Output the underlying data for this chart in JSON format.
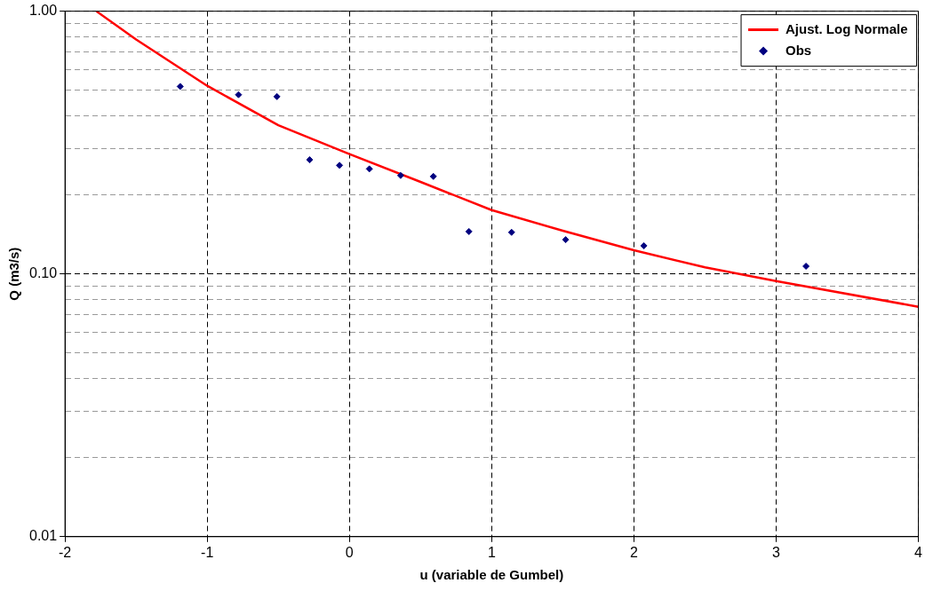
{
  "chart_data": {
    "type": "scatter",
    "xlabel": "u (variable de Gumbel)",
    "ylabel": "Q (m3/s)",
    "log": "y",
    "grid": true,
    "legend": "top right",
    "xlim": [
      -2,
      4
    ],
    "xticks": [
      -2,
      -1,
      0,
      1,
      2,
      3,
      4
    ],
    "ylim": [
      0.01,
      1
    ],
    "yticks": [
      {
        "value": 0.01,
        "label": "0.01"
      },
      {
        "value": 0.02,
        "label": null
      },
      {
        "value": 0.03,
        "label": null
      },
      {
        "value": 0.04,
        "label": null
      },
      {
        "value": 0.05,
        "label": null
      },
      {
        "value": 0.06,
        "label": null
      },
      {
        "value": 0.07,
        "label": null
      },
      {
        "value": 0.08,
        "label": null
      },
      {
        "value": 0.09,
        "label": null
      },
      {
        "value": 0.1,
        "label": "0.10"
      },
      {
        "value": 0.2,
        "label": null
      },
      {
        "value": 0.3,
        "label": null
      },
      {
        "value": 0.4,
        "label": null
      },
      {
        "value": 0.5,
        "label": null
      },
      {
        "value": 0.6,
        "label": null
      },
      {
        "value": 0.7,
        "label": null
      },
      {
        "value": 0.8,
        "label": null
      },
      {
        "value": 0.9,
        "label": null
      },
      {
        "value": 1,
        "label": "1.00"
      }
    ],
    "series": [
      {
        "name": "Ajust. Log Normale",
        "type": "line",
        "color": "#ff0000",
        "marker": "none",
        "line_style": "solid",
        "x": [
          -1.78,
          -1.5,
          -1,
          -0.5,
          0,
          0.5,
          1,
          1.5,
          2,
          2.5,
          3,
          4
        ],
        "values": [
          1.0,
          0.78,
          0.52,
          0.368,
          0.286,
          0.224,
          0.175,
          0.146,
          0.123,
          0.106,
          0.094,
          0.075
        ]
      },
      {
        "name": "Obs",
        "type": "scatter",
        "color": "#000080",
        "marker": "diamond",
        "x": [
          -1.19,
          -0.78,
          -0.51,
          -0.28,
          -0.07,
          0.14,
          0.36,
          0.59,
          0.84,
          1.14,
          1.52,
          2.07,
          3.21
        ],
        "values": [
          0.517,
          0.481,
          0.473,
          0.272,
          0.259,
          0.251,
          0.237,
          0.235,
          0.145,
          0.144,
          0.135,
          0.128,
          0.107
        ]
      }
    ]
  }
}
